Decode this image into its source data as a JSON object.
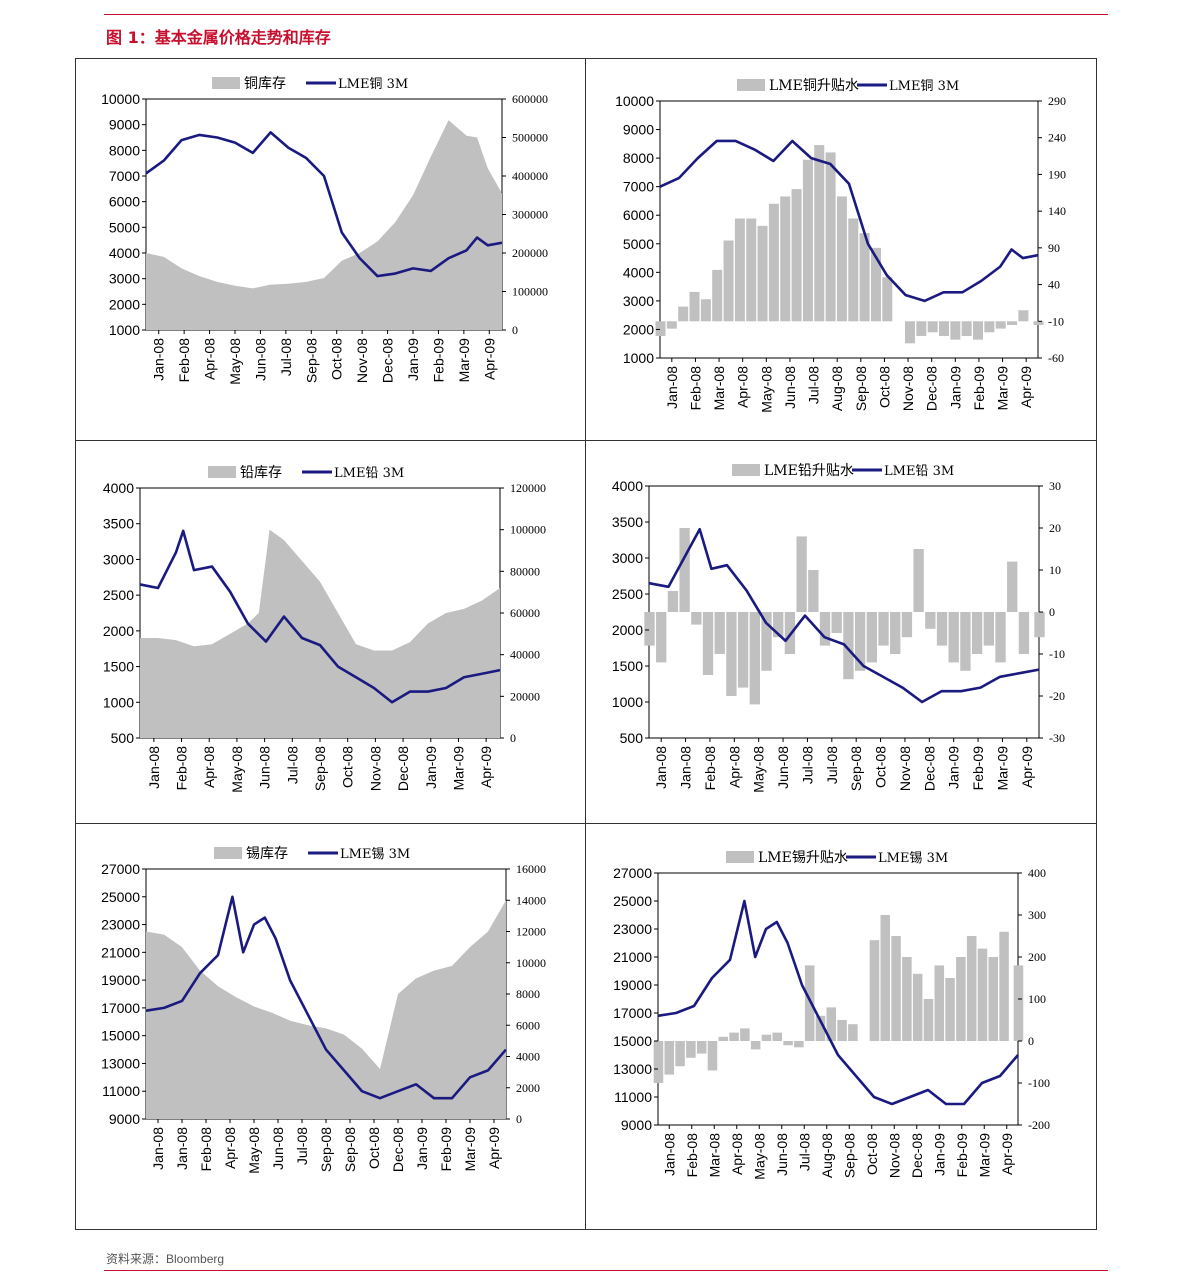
{
  "page": {
    "title": "图 1：基本金属价格走势和库存",
    "source": "资料来源：Bloomberg",
    "colors": {
      "accent": "#c8102e",
      "line": "#1a1a80",
      "bar": "#c0c0c0"
    }
  },
  "chart_data": [
    {
      "type": "bar-line",
      "legend": [
        "铜库存",
        "LME铜 3M"
      ],
      "legend_position": "top",
      "x_labels": [
        "Jan-08",
        "Feb-08",
        "Apr-08",
        "May-08",
        "Jun-08",
        "Jul-08",
        "Sep-08",
        "Oct-08",
        "Nov-08",
        "Dec-08",
        "Jan-09",
        "Feb-09",
        "Mar-09",
        "Apr-09"
      ],
      "left_axis": {
        "min": 1000,
        "max": 10000,
        "ticks": [
          1000,
          2000,
          3000,
          4000,
          5000,
          6000,
          7000,
          8000,
          9000,
          10000
        ]
      },
      "right_axis": {
        "min": 0,
        "max": 600000,
        "ticks": [
          0,
          100000,
          200000,
          300000,
          400000,
          500000,
          600000
        ]
      },
      "series": [
        {
          "name": "铜库存",
          "kind": "area",
          "axis": "right",
          "x": [
            0,
            0.05,
            0.1,
            0.15,
            0.2,
            0.25,
            0.3,
            0.35,
            0.4,
            0.45,
            0.5,
            0.55,
            0.6,
            0.65,
            0.7,
            0.75,
            0.8,
            0.85,
            0.9,
            0.93,
            0.96,
            1.0
          ],
          "y": [
            200000,
            190000,
            160000,
            140000,
            125000,
            115000,
            108000,
            118000,
            120000,
            125000,
            135000,
            180000,
            200000,
            230000,
            280000,
            350000,
            450000,
            545000,
            505000,
            500000,
            420000,
            355000
          ]
        },
        {
          "name": "LME铜 3M",
          "kind": "line",
          "axis": "left",
          "x": [
            0,
            0.05,
            0.1,
            0.15,
            0.2,
            0.25,
            0.3,
            0.35,
            0.4,
            0.45,
            0.5,
            0.55,
            0.6,
            0.65,
            0.7,
            0.75,
            0.8,
            0.85,
            0.9,
            0.93,
            0.96,
            1.0
          ],
          "y": [
            7100,
            7600,
            8400,
            8600,
            8500,
            8300,
            7900,
            8700,
            8100,
            7700,
            7000,
            4800,
            3800,
            3100,
            3200,
            3400,
            3300,
            3800,
            4100,
            4600,
            4300,
            4400
          ]
        }
      ]
    },
    {
      "type": "bar-line",
      "legend": [
        "LME铜升贴水",
        "LME铜 3M"
      ],
      "legend_position": "top",
      "x_labels": [
        "Jan-08",
        "Feb-08",
        "Mar-08",
        "Apr-08",
        "May-08",
        "Jun-08",
        "Jul-08",
        "Aug-08",
        "Sep-08",
        "Oct-08",
        "Nov-08",
        "Dec-08",
        "Jan-09",
        "Feb-09",
        "Mar-09",
        "Apr-09"
      ],
      "left_axis": {
        "min": 1000,
        "max": 10000,
        "ticks": [
          1000,
          2000,
          3000,
          4000,
          5000,
          6000,
          7000,
          8000,
          9000,
          10000
        ]
      },
      "right_axis": {
        "min": -60,
        "max": 290,
        "ticks": [
          -60,
          -10,
          40,
          90,
          140,
          190,
          240,
          290
        ]
      },
      "series": [
        {
          "name": "LME铜升贴水",
          "kind": "bar",
          "axis": "right",
          "baseline": -10,
          "x": [
            0,
            0.03,
            0.06,
            0.09,
            0.12,
            0.15,
            0.18,
            0.21,
            0.24,
            0.27,
            0.3,
            0.33,
            0.36,
            0.39,
            0.42,
            0.45,
            0.48,
            0.51,
            0.54,
            0.57,
            0.6,
            0.63,
            0.66,
            0.69,
            0.72,
            0.75,
            0.78,
            0.81,
            0.84,
            0.87,
            0.9,
            0.93,
            0.96,
            1.0
          ],
          "y": [
            -30,
            -20,
            10,
            30,
            20,
            60,
            100,
            130,
            130,
            120,
            150,
            160,
            170,
            210,
            230,
            220,
            160,
            130,
            110,
            90,
            50,
            -10,
            -40,
            -30,
            -25,
            -30,
            -35,
            -30,
            -35,
            -25,
            -20,
            -15,
            5,
            -15
          ]
        },
        {
          "name": "LME铜 3M",
          "kind": "line",
          "axis": "left",
          "x": [
            0,
            0.05,
            0.1,
            0.15,
            0.2,
            0.25,
            0.3,
            0.35,
            0.4,
            0.45,
            0.5,
            0.55,
            0.6,
            0.65,
            0.7,
            0.75,
            0.8,
            0.85,
            0.9,
            0.93,
            0.96,
            1.0
          ],
          "y": [
            7000,
            7300,
            8000,
            8600,
            8600,
            8300,
            7900,
            8600,
            8000,
            7800,
            7100,
            5000,
            3900,
            3200,
            3000,
            3300,
            3300,
            3700,
            4200,
            4800,
            4500,
            4600
          ]
        }
      ]
    },
    {
      "type": "bar-line",
      "legend": [
        "铅库存",
        "LME铅 3M"
      ],
      "legend_position": "top",
      "x_labels": [
        "Jan-08",
        "Feb-08",
        "Apr-08",
        "May-08",
        "Jun-08",
        "Jul-08",
        "Sep-08",
        "Oct-08",
        "Nov-08",
        "Dec-08",
        "Jan-09",
        "Mar-09",
        "Apr-09"
      ],
      "left_axis": {
        "min": 500,
        "max": 4000,
        "ticks": [
          500,
          1000,
          1500,
          2000,
          2500,
          3000,
          3500,
          4000
        ]
      },
      "right_axis": {
        "min": 0,
        "max": 120000,
        "ticks": [
          0,
          20000,
          40000,
          60000,
          80000,
          100000,
          120000
        ]
      },
      "series": [
        {
          "name": "铅库存",
          "kind": "area",
          "axis": "right",
          "x": [
            0,
            0.05,
            0.1,
            0.15,
            0.2,
            0.25,
            0.3,
            0.33,
            0.36,
            0.4,
            0.45,
            0.5,
            0.55,
            0.6,
            0.65,
            0.7,
            0.75,
            0.8,
            0.85,
            0.9,
            0.95,
            1.0
          ],
          "y": [
            48000,
            48000,
            47000,
            44000,
            45000,
            50000,
            55000,
            60000,
            100000,
            95000,
            85000,
            75000,
            60000,
            45000,
            42000,
            42000,
            46000,
            55000,
            60000,
            62000,
            66000,
            72000
          ]
        },
        {
          "name": "LME铅 3M",
          "kind": "line",
          "axis": "left",
          "x": [
            0,
            0.05,
            0.1,
            0.12,
            0.15,
            0.2,
            0.25,
            0.3,
            0.35,
            0.4,
            0.45,
            0.5,
            0.55,
            0.6,
            0.65,
            0.7,
            0.75,
            0.8,
            0.85,
            0.9,
            0.95,
            1.0
          ],
          "y": [
            2650,
            2600,
            3100,
            3400,
            2850,
            2900,
            2550,
            2100,
            1850,
            2200,
            1900,
            1800,
            1500,
            1350,
            1200,
            1000,
            1150,
            1150,
            1200,
            1350,
            1400,
            1450
          ]
        }
      ]
    },
    {
      "type": "bar-line",
      "legend": [
        "LME铅升贴水",
        "LME铅 3M"
      ],
      "legend_position": "top",
      "x_labels": [
        "Jan-08",
        "Jan-08",
        "Feb-08",
        "Apr-08",
        "May-08",
        "Jun-08",
        "Jul-08",
        "Jul-08",
        "Sep-08",
        "Oct-08",
        "Nov-08",
        "Dec-08",
        "Jan-09",
        "Feb-09",
        "Mar-09",
        "Apr-09"
      ],
      "left_axis": {
        "min": 500,
        "max": 4000,
        "ticks": [
          500,
          1000,
          1500,
          2000,
          2500,
          3000,
          3500,
          4000
        ]
      },
      "right_axis": {
        "min": -30,
        "max": 30,
        "ticks": [
          -30,
          -20,
          -10,
          0,
          10,
          20,
          30
        ]
      },
      "series": [
        {
          "name": "LME铅升贴水",
          "kind": "bar",
          "axis": "right",
          "baseline": 0,
          "x": [
            0,
            0.03,
            0.06,
            0.09,
            0.12,
            0.15,
            0.18,
            0.21,
            0.24,
            0.27,
            0.3,
            0.33,
            0.36,
            0.39,
            0.42,
            0.45,
            0.48,
            0.51,
            0.54,
            0.57,
            0.6,
            0.63,
            0.66,
            0.69,
            0.72,
            0.75,
            0.78,
            0.81,
            0.84,
            0.87,
            0.9,
            0.93,
            0.96,
            1.0
          ],
          "y": [
            -8,
            -12,
            5,
            20,
            -3,
            -15,
            -10,
            -20,
            -18,
            -22,
            -14,
            -6,
            -10,
            18,
            10,
            -8,
            -5,
            -16,
            -14,
            -12,
            -8,
            -10,
            -6,
            15,
            -4,
            -8,
            -12,
            -14,
            -10,
            -8,
            -12,
            12,
            -10,
            -6
          ]
        },
        {
          "name": "LME铅 3M",
          "kind": "line",
          "axis": "left",
          "x": [
            0,
            0.05,
            0.1,
            0.13,
            0.16,
            0.2,
            0.25,
            0.3,
            0.35,
            0.4,
            0.45,
            0.5,
            0.55,
            0.6,
            0.65,
            0.7,
            0.75,
            0.8,
            0.85,
            0.9,
            0.95,
            1.0
          ],
          "y": [
            2650,
            2600,
            3100,
            3400,
            2850,
            2900,
            2550,
            2100,
            1850,
            2200,
            1900,
            1800,
            1500,
            1350,
            1200,
            1000,
            1150,
            1150,
            1200,
            1350,
            1400,
            1450
          ]
        }
      ]
    },
    {
      "type": "bar-line",
      "legend": [
        "锡库存",
        "LME锡 3M"
      ],
      "legend_position": "top",
      "x_labels": [
        "Jan-08",
        "Jan-08",
        "Feb-08",
        "Apr-08",
        "May-08",
        "Jun-08",
        "Jul-08",
        "Sep-08",
        "Sep-08",
        "Oct-08",
        "Dec-08",
        "Jan-09",
        "Feb-09",
        "Mar-09",
        "Apr-09"
      ],
      "left_axis": {
        "min": 9000,
        "max": 27000,
        "ticks": [
          9000,
          11000,
          13000,
          15000,
          17000,
          19000,
          21000,
          23000,
          25000,
          27000
        ]
      },
      "right_axis": {
        "min": 0,
        "max": 16000,
        "ticks": [
          0,
          2000,
          4000,
          6000,
          8000,
          10000,
          12000,
          14000,
          16000
        ]
      },
      "series": [
        {
          "name": "锡库存",
          "kind": "area",
          "axis": "right",
          "x": [
            0,
            0.05,
            0.1,
            0.15,
            0.2,
            0.25,
            0.3,
            0.35,
            0.4,
            0.45,
            0.5,
            0.55,
            0.6,
            0.65,
            0.7,
            0.75,
            0.8,
            0.85,
            0.9,
            0.95,
            1.0
          ],
          "y": [
            12000,
            11800,
            11000,
            9500,
            8500,
            7800,
            7200,
            6800,
            6300,
            6000,
            5800,
            5400,
            4500,
            3200,
            8000,
            9000,
            9500,
            9800,
            11000,
            12000,
            14000
          ]
        },
        {
          "name": "LME锡 3M",
          "kind": "line",
          "axis": "left",
          "x": [
            0,
            0.05,
            0.1,
            0.15,
            0.2,
            0.24,
            0.27,
            0.3,
            0.33,
            0.36,
            0.4,
            0.45,
            0.5,
            0.55,
            0.6,
            0.65,
            0.7,
            0.75,
            0.8,
            0.85,
            0.9,
            0.95,
            1.0
          ],
          "y": [
            16800,
            17000,
            17500,
            19500,
            20800,
            25000,
            21000,
            23000,
            23500,
            22000,
            19000,
            16500,
            14000,
            12500,
            11000,
            10500,
            11000,
            11500,
            10500,
            10500,
            12000,
            12500,
            14000
          ]
        }
      ]
    },
    {
      "type": "bar-line",
      "legend": [
        "LME锡升贴水",
        "LME锡 3M"
      ],
      "legend_position": "top",
      "x_labels": [
        "Jan-08",
        "Feb-08",
        "Mar-08",
        "Apr-08",
        "May-08",
        "Jun-08",
        "Jul-08",
        "Aug-08",
        "Sep-08",
        "Oct-08",
        "Nov-08",
        "Dec-08",
        "Jan-09",
        "Feb-09",
        "Mar-09",
        "Apr-09"
      ],
      "left_axis": {
        "min": 9000,
        "max": 27000,
        "ticks": [
          9000,
          11000,
          13000,
          15000,
          17000,
          19000,
          21000,
          23000,
          25000,
          27000
        ]
      },
      "right_axis": {
        "min": -200,
        "max": 400,
        "ticks": [
          -200,
          -100,
          0,
          100,
          200,
          300,
          400
        ]
      },
      "series": [
        {
          "name": "LME锡升贴水",
          "kind": "bar",
          "axis": "right",
          "baseline": 0,
          "x": [
            0,
            0.03,
            0.06,
            0.09,
            0.12,
            0.15,
            0.18,
            0.21,
            0.24,
            0.27,
            0.3,
            0.33,
            0.36,
            0.39,
            0.42,
            0.45,
            0.48,
            0.51,
            0.54,
            0.57,
            0.6,
            0.63,
            0.66,
            0.69,
            0.72,
            0.75,
            0.78,
            0.81,
            0.84,
            0.87,
            0.9,
            0.93,
            0.96,
            1.0
          ],
          "y": [
            -100,
            -80,
            -60,
            -40,
            -30,
            -70,
            10,
            20,
            30,
            -20,
            15,
            20,
            -10,
            -15,
            180,
            60,
            80,
            50,
            40,
            0,
            240,
            300,
            250,
            200,
            160,
            100,
            180,
            150,
            200,
            250,
            220,
            200,
            260,
            180
          ]
        },
        {
          "name": "LME锡 3M",
          "kind": "line",
          "axis": "left",
          "x": [
            0,
            0.05,
            0.1,
            0.15,
            0.2,
            0.24,
            0.27,
            0.3,
            0.33,
            0.36,
            0.4,
            0.45,
            0.5,
            0.55,
            0.6,
            0.65,
            0.7,
            0.75,
            0.8,
            0.85,
            0.9,
            0.95,
            1.0
          ],
          "y": [
            16800,
            17000,
            17500,
            19500,
            20800,
            25000,
            21000,
            23000,
            23500,
            22000,
            19000,
            16500,
            14000,
            12500,
            11000,
            10500,
            11000,
            11500,
            10500,
            10500,
            12000,
            12500,
            14000
          ]
        }
      ]
    }
  ]
}
